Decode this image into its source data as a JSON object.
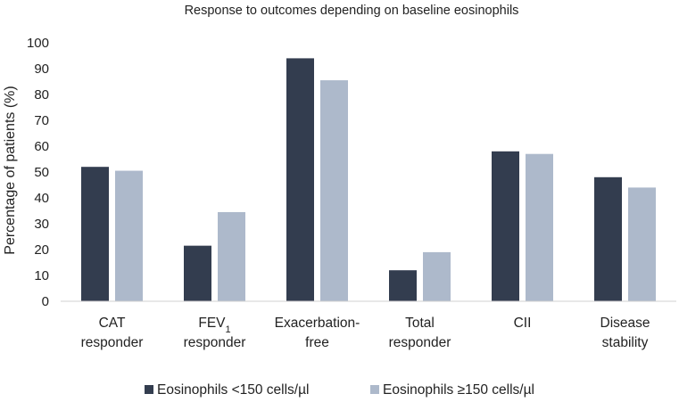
{
  "chart_data": {
    "type": "bar",
    "title": "Response to outcomes depending on baseline eosinophils",
    "xlabel": "",
    "ylabel": "Percentage of patients (%)",
    "ylim": [
      0,
      100
    ],
    "yticks": [
      0,
      10,
      20,
      30,
      40,
      50,
      60,
      70,
      80,
      90,
      100
    ],
    "grid": false,
    "legend_position": "bottom",
    "categories": [
      [
        "CAT",
        "responder"
      ],
      [
        "FEV1",
        "responder"
      ],
      [
        "Exacerbation-",
        "free"
      ],
      [
        "Total",
        "responder"
      ],
      [
        "CII"
      ],
      [
        "Disease",
        "stability"
      ]
    ],
    "series": [
      {
        "name": "Eosinophils <150 cells/µl",
        "color": "#333d4f",
        "values": [
          52,
          21.5,
          94,
          12,
          58,
          48
        ]
      },
      {
        "name": "Eosinophils ≥150 cells/µl",
        "color": "#adb9cb",
        "values": [
          50.5,
          34.5,
          85.5,
          19,
          57,
          44
        ]
      }
    ]
  }
}
